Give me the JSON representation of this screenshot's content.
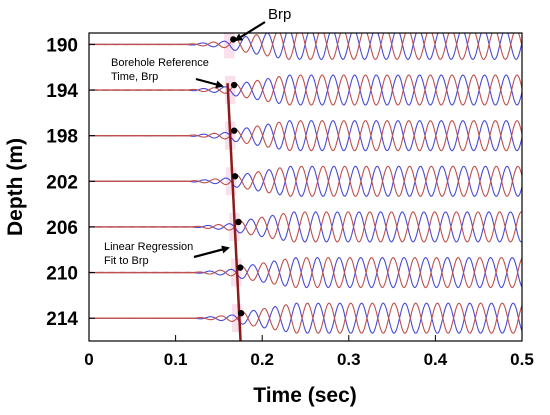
{
  "chart_data": {
    "type": "line",
    "xlabel": "Time (sec)",
    "ylabel": "Depth (m)",
    "xlim": [
      0,
      0.5
    ],
    "ylim": [
      216,
      189
    ],
    "xticks": [
      "0",
      "0.1",
      "0.2",
      "0.3",
      "0.4",
      "0.5"
    ],
    "yticks": [
      "190",
      "194",
      "198",
      "202",
      "206",
      "210",
      "214"
    ],
    "grid": false,
    "traces": [
      {
        "depth": 190,
        "brp_time": 0.162
      },
      {
        "depth": 194,
        "brp_time": 0.163
      },
      {
        "depth": 198,
        "brp_time": 0.163
      },
      {
        "depth": 202,
        "brp_time": 0.164
      },
      {
        "depth": 206,
        "brp_time": 0.168
      },
      {
        "depth": 210,
        "brp_time": 0.17
      },
      {
        "depth": 214,
        "brp_time": 0.171
      }
    ],
    "regression_line": {
      "x": [
        0.16,
        0.175
      ],
      "y": [
        193.4,
        216
      ]
    },
    "colors": {
      "trace_a": "#c0504d",
      "trace_b": "#4a4ad8",
      "baseline": "#c0504d",
      "regression": "#8b1a1a",
      "marker": "#000000",
      "highlight": "#f4c6dc"
    },
    "annotations": {
      "brp": "Brp",
      "borehole_line1": "Borehole Reference",
      "borehole_line2": "Time, Brp",
      "regression_line1": "Linear Regression",
      "regression_line2": "Fit to Brp"
    }
  }
}
